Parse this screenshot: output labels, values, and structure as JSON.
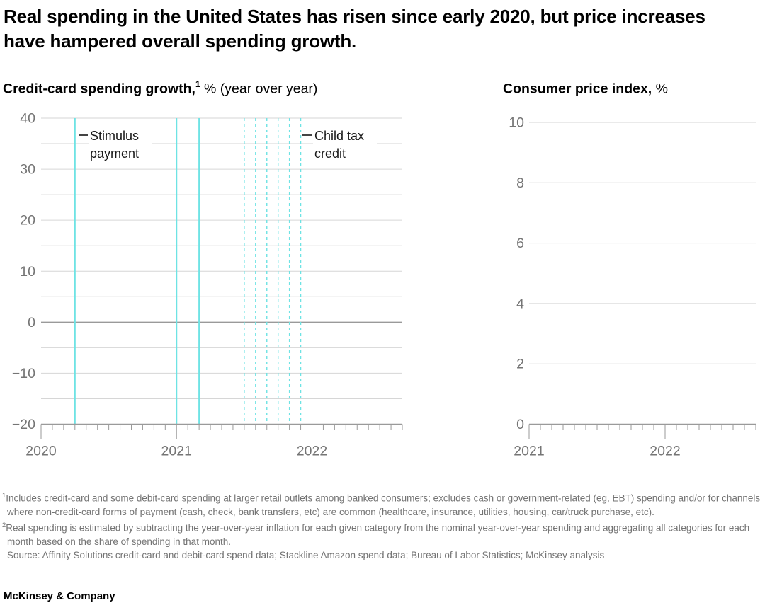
{
  "title": "Real spending in the United States has risen since early 2020, but price increases have hampered overall spending growth.",
  "charts": [
    {
      "title_bold": "Credit-card spending growth,",
      "title_sup": "1",
      "title_rest": " % (year over year)"
    },
    {
      "title_bold": "Consumer price index,",
      "title_sup": "",
      "title_rest": " %"
    }
  ],
  "annotations": {
    "stimulus": "Stimulus payment",
    "child_tax": "Child tax credit"
  },
  "footnotes": [
    {
      "marker": "1",
      "text": "Includes credit-card and some debit-card spending at larger retail outlets among banked consumers; excludes cash or government-related (eg, EBT) spending and/or for channels where non-credit-card forms of payment (cash, check, bank transfers, etc) are common (healthcare, insurance, utilities, housing, car/truck purchase, etc)."
    },
    {
      "marker": "2",
      "text": "Real spending is estimated by subtracting the year-over-year inflation for each given category from the nominal year-over-year spending and aggregating all categories for each month based on the share of spending in that month."
    }
  ],
  "source": "Source: Affinity Solutions credit-card and debit-card spend data; Stackline Amazon spend data; Bureau of Labor Statistics; McKinsey analysis",
  "logo": "McKinsey & Company",
  "colors": {
    "accent_cyan": "#6EE3E4",
    "gridline": "#D6D6D6",
    "axis": "#9A9A9A",
    "tick_label": "#757575",
    "title": "#000000",
    "footnote": "#737373"
  },
  "chart_data": [
    {
      "type": "line",
      "title": "Credit-card spending growth, % (year over year)",
      "ylabel": "%",
      "ylim": [
        -20,
        40
      ],
      "y_tick_labels": [
        40,
        30,
        20,
        10,
        0,
        -10,
        -20
      ],
      "gridline_values": [
        40,
        35,
        30,
        25,
        20,
        15,
        10,
        5,
        0,
        -5,
        -10,
        -15
      ],
      "x_start": "2020-01",
      "x_end": "2022-09",
      "x_tick_interval": "month",
      "x_year_labels": [
        "2020",
        "2021",
        "2022"
      ],
      "legend": "none",
      "series": [],
      "event_lines": [
        {
          "label": "Stimulus payment",
          "style": "solid",
          "months": [
            "2020-04",
            "2021-01",
            "2021-03"
          ]
        },
        {
          "label": "Child tax credit",
          "style": "dashed",
          "months": [
            "2021-07",
            "2021-08",
            "2021-09",
            "2021-10",
            "2021-11",
            "2021-12"
          ]
        }
      ]
    },
    {
      "type": "line",
      "title": "Consumer price index, %",
      "ylabel": "%",
      "ylim": [
        0,
        10
      ],
      "y_tick_labels": [
        10,
        8,
        6,
        4,
        2,
        0
      ],
      "gridline_values": [
        10,
        8,
        6,
        4,
        2
      ],
      "x_start": "2021-01",
      "x_end": "2022-09",
      "x_tick_interval": "month",
      "x_year_labels": [
        "2021",
        "2022"
      ],
      "legend": "none",
      "series": [],
      "event_lines": []
    }
  ]
}
